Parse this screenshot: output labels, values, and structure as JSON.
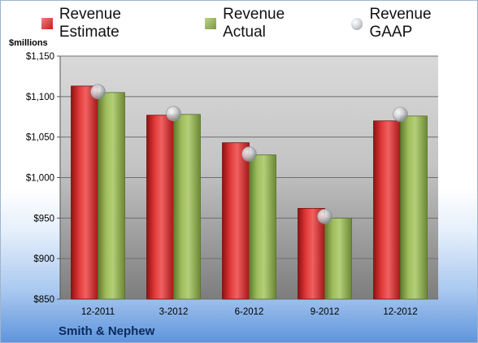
{
  "chart_data": {
    "type": "bar",
    "units_label": "$millions",
    "company": "Smith & Nephew",
    "categories": [
      "12-2011",
      "3-2012",
      "6-2012",
      "9-2012",
      "12-2012"
    ],
    "series": [
      {
        "name": "Revenue Estimate",
        "kind": "bar",
        "color": "#d42a2a",
        "values": [
          1113,
          1077,
          1043,
          962,
          1070
        ]
      },
      {
        "name": "Revenue Actual",
        "kind": "bar",
        "color": "#8fae4f",
        "values": [
          1105,
          1078,
          1028,
          950,
          1076
        ]
      },
      {
        "name": "Revenue GAAP",
        "kind": "marker",
        "color": "#b9bec4",
        "values": [
          1106,
          1079,
          1029,
          952,
          1078
        ]
      }
    ],
    "ylim": [
      850,
      1150
    ],
    "yticks": [
      "$850",
      "$900",
      "$950",
      "$1,000",
      "$1,050",
      "$1,100",
      "$1,150"
    ],
    "ytick_values": [
      850,
      900,
      950,
      1000,
      1050,
      1100,
      1150
    ],
    "legend_position": "top",
    "grid": true
  }
}
